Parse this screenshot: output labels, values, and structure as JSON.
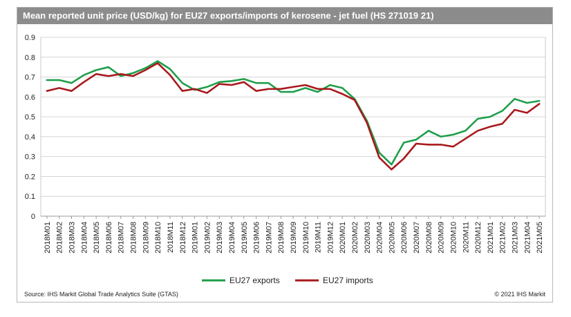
{
  "title": "Mean reported unit price (USD/kg) for EU27 exports/imports of kerosene - jet fuel (HS 271019 21)",
  "source": "Source: IHS Markit Global Trade Analytics Suite (GTAS)",
  "copyright": "© 2021 IHS Markit",
  "chart_data": {
    "type": "line",
    "title": "Mean reported unit price (USD/kg) for EU27 exports/imports of kerosene - jet fuel (HS 271019 21)",
    "xlabel": "",
    "ylabel": "",
    "ylim": [
      0,
      0.9
    ],
    "yticks": [
      "0",
      "0.1",
      "0.2",
      "0.3",
      "0.4",
      "0.5",
      "0.6",
      "0.7",
      "0.8",
      "0.9"
    ],
    "grid": true,
    "legend_position": "bottom",
    "categories": [
      "2018M01",
      "2018M02",
      "2018M03",
      "2018M04",
      "2018M05",
      "2018M06",
      "2018M07",
      "2018M08",
      "2018M09",
      "2018M10",
      "2018M11",
      "2018M12",
      "2019M01",
      "2019M02",
      "2019M03",
      "2019M04",
      "2019M05",
      "2019M06",
      "2019M07",
      "2019M08",
      "2019M09",
      "2019M10",
      "2019M11",
      "2019M12",
      "2020M01",
      "2020M02",
      "2020M03",
      "2020M04",
      "2020M05",
      "2020M06",
      "2020M07",
      "2020M08",
      "2020M09",
      "2020M10",
      "2020M11",
      "2020M12",
      "2021M01",
      "2021M02",
      "2021M03",
      "2021M04",
      "2021M05"
    ],
    "series": [
      {
        "name": "EU27 exports",
        "color": "#1e9e4a",
        "values": [
          0.685,
          0.685,
          0.67,
          0.71,
          0.735,
          0.75,
          0.705,
          0.72,
          0.745,
          0.78,
          0.74,
          0.67,
          0.635,
          0.65,
          0.675,
          0.68,
          0.69,
          0.67,
          0.67,
          0.625,
          0.625,
          0.645,
          0.625,
          0.66,
          0.645,
          0.59,
          0.48,
          0.32,
          0.26,
          0.37,
          0.385,
          0.43,
          0.4,
          0.41,
          0.43,
          0.49,
          0.5,
          0.53,
          0.59,
          0.57,
          0.58
        ]
      },
      {
        "name": "EU27 imports",
        "color": "#a8191c",
        "values": [
          0.63,
          0.645,
          0.63,
          0.675,
          0.715,
          0.705,
          0.715,
          0.705,
          0.735,
          0.77,
          0.71,
          0.63,
          0.64,
          0.62,
          0.665,
          0.66,
          0.675,
          0.63,
          0.64,
          0.64,
          0.65,
          0.66,
          0.64,
          0.64,
          0.615,
          0.585,
          0.47,
          0.295,
          0.235,
          0.29,
          0.365,
          0.36,
          0.36,
          0.35,
          0.39,
          0.43,
          0.45,
          0.465,
          0.535,
          0.52,
          0.565
        ]
      }
    ]
  }
}
